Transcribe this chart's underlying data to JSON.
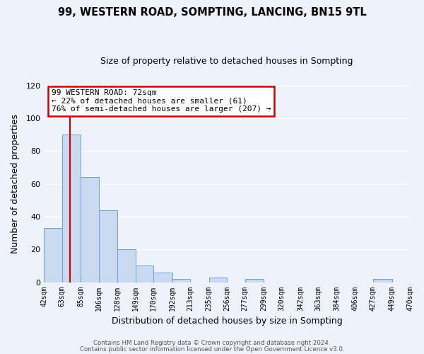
{
  "title": "99, WESTERN ROAD, SOMPTING, LANCING, BN15 9TL",
  "subtitle": "Size of property relative to detached houses in Sompting",
  "xlabel": "Distribution of detached houses by size in Sompting",
  "ylabel": "Number of detached properties",
  "bar_left_edges": [
    42,
    63,
    85,
    106,
    128,
    149,
    170,
    192,
    213,
    235,
    256,
    277,
    299,
    320,
    342,
    363,
    384,
    406,
    427,
    449
  ],
  "bar_widths": [
    21,
    22,
    21,
    22,
    21,
    21,
    22,
    21,
    22,
    21,
    21,
    22,
    21,
    22,
    21,
    21,
    22,
    21,
    22,
    21
  ],
  "bar_heights": [
    33,
    90,
    64,
    44,
    20,
    10,
    6,
    2,
    0,
    3,
    0,
    2,
    0,
    0,
    0,
    0,
    0,
    0,
    2,
    0
  ],
  "tick_labels": [
    "42sqm",
    "63sqm",
    "85sqm",
    "106sqm",
    "128sqm",
    "149sqm",
    "170sqm",
    "192sqm",
    "213sqm",
    "235sqm",
    "256sqm",
    "277sqm",
    "299sqm",
    "320sqm",
    "342sqm",
    "363sqm",
    "384sqm",
    "406sqm",
    "427sqm",
    "449sqm",
    "470sqm"
  ],
  "bar_color": "#c9d9f0",
  "bar_edge_color": "#6fa0d0",
  "redline_x": 72,
  "annotation_lines": [
    "99 WESTERN ROAD: 72sqm",
    "← 22% of detached houses are smaller (61)",
    "76% of semi-detached houses are larger (207) →"
  ],
  "ylim": [
    0,
    120
  ],
  "yticks": [
    0,
    20,
    40,
    60,
    80,
    100,
    120
  ],
  "footer1": "Contains HM Land Registry data © Crown copyright and database right 2024.",
  "footer2": "Contains public sector information licensed under the Open Government Licence v3.0.",
  "background_color": "#eef2fa",
  "grid_color": "#ffffff",
  "annotation_box_color": "#ffffff",
  "annotation_box_edge_color": "#cc0000",
  "redline_color": "#cc0000"
}
